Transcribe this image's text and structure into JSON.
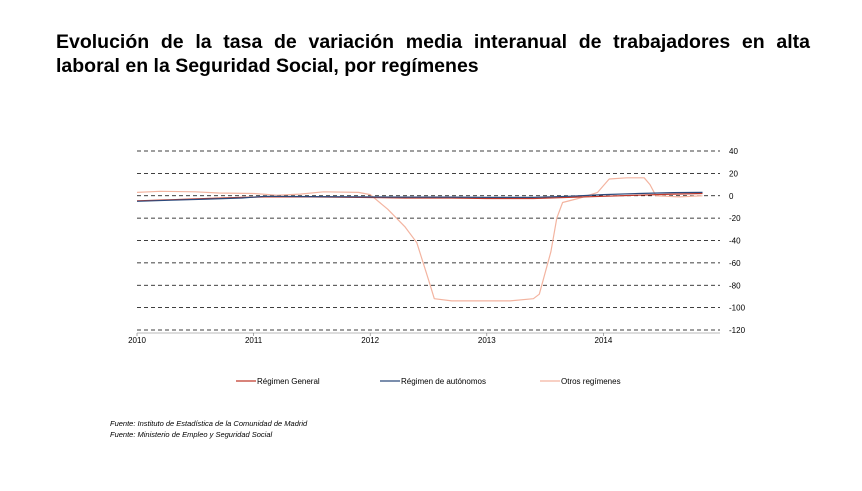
{
  "title": "Evolución de la tasa de variación media interanual de trabajadores en alta laboral en la Seguridad Social, por  regímenes",
  "sources": [
    "Fuente: Instituto de Estadística de la Comunidad de Madrid",
    "Fuente: Ministerio de Empleo y Seguridad Social"
  ],
  "chart_data": {
    "type": "line",
    "title": "Evolución de la tasa de variación media interanual de trabajadores en alta laboral en la Seguridad Social, por  regímenes",
    "xlabel": "",
    "ylabel": "",
    "xlim": [
      2010.0,
      2015.0
    ],
    "ylim": [
      -120,
      40
    ],
    "y_ticks": [
      40,
      20,
      0,
      -20,
      -40,
      -60,
      -80,
      -100,
      -120
    ],
    "y_tick_labels": [
      "40",
      "20",
      "0",
      "-20",
      "-40",
      "-60",
      "-80",
      "-100",
      "-120"
    ],
    "x_ticks": [
      2010,
      2011,
      2012,
      2013,
      2014
    ],
    "x_tick_labels": [
      "2010",
      "2011",
      "2012",
      "2013",
      "2014"
    ],
    "grid": "horizontal dashed",
    "legend_position": "bottom",
    "y_axis_position": "right",
    "series": [
      {
        "name": "Régimen General",
        "color": "#c0392b",
        "points": [
          [
            2010.0,
            -4.5
          ],
          [
            2010.3,
            -3.5
          ],
          [
            2010.6,
            -2.5
          ],
          [
            2010.9,
            -1.5
          ],
          [
            2011.1,
            -1
          ],
          [
            2011.5,
            -1
          ],
          [
            2011.9,
            -1.5
          ],
          [
            2012.3,
            -2
          ],
          [
            2012.7,
            -2
          ],
          [
            2013.0,
            -2.5
          ],
          [
            2013.4,
            -2.5
          ],
          [
            2013.7,
            -1.5
          ],
          [
            2014.0,
            -0.5
          ],
          [
            2014.3,
            0.5
          ],
          [
            2014.6,
            1.5
          ],
          [
            2014.85,
            2
          ]
        ]
      },
      {
        "name": "Régimen de autónomos",
        "color": "#2c4a7c",
        "points": [
          [
            2010.0,
            -5
          ],
          [
            2010.3,
            -4
          ],
          [
            2010.6,
            -3
          ],
          [
            2010.9,
            -2
          ],
          [
            2011.1,
            -0.5
          ],
          [
            2011.5,
            -0.8
          ],
          [
            2011.9,
            -1
          ],
          [
            2012.3,
            -1.2
          ],
          [
            2012.7,
            -1.2
          ],
          [
            2013.0,
            -1.5
          ],
          [
            2013.4,
            -1.5
          ],
          [
            2013.7,
            -0.5
          ],
          [
            2014.0,
            1
          ],
          [
            2014.3,
            2
          ],
          [
            2014.6,
            2.8
          ],
          [
            2014.85,
            3
          ]
        ]
      },
      {
        "name": "Otros regímenes",
        "color": "#f3b4a0",
        "points": [
          [
            2010.0,
            3
          ],
          [
            2010.2,
            4
          ],
          [
            2010.5,
            3.5
          ],
          [
            2010.7,
            2.5
          ],
          [
            2011.0,
            2
          ],
          [
            2011.2,
            0.5
          ],
          [
            2011.4,
            1.5
          ],
          [
            2011.6,
            3.5
          ],
          [
            2011.9,
            3
          ],
          [
            2012.0,
            1
          ],
          [
            2012.15,
            -12
          ],
          [
            2012.3,
            -28
          ],
          [
            2012.4,
            -42
          ],
          [
            2012.5,
            -75
          ],
          [
            2012.55,
            -92
          ],
          [
            2012.7,
            -94
          ],
          [
            2012.9,
            -94
          ],
          [
            2013.2,
            -94
          ],
          [
            2013.4,
            -92
          ],
          [
            2013.45,
            -88
          ],
          [
            2013.55,
            -50
          ],
          [
            2013.6,
            -20
          ],
          [
            2013.65,
            -6
          ],
          [
            2013.8,
            -2
          ],
          [
            2013.95,
            3
          ],
          [
            2014.05,
            15
          ],
          [
            2014.2,
            16
          ],
          [
            2014.35,
            16
          ],
          [
            2014.4,
            10
          ],
          [
            2014.45,
            0
          ],
          [
            2014.65,
            -1
          ],
          [
            2014.85,
            0
          ]
        ]
      }
    ]
  }
}
